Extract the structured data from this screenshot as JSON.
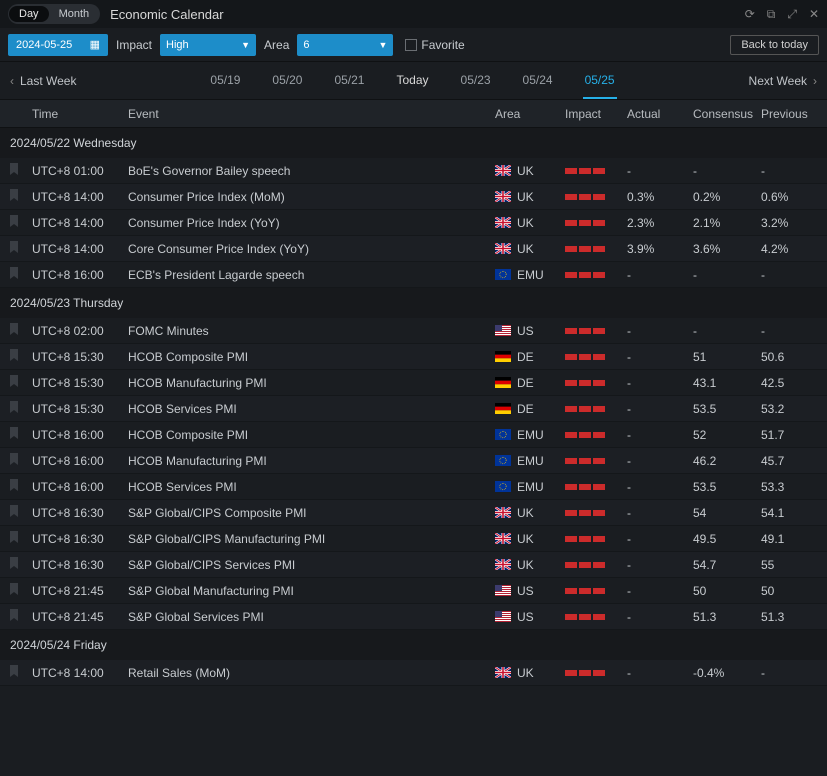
{
  "titlebar": {
    "view_day": "Day",
    "view_month": "Month",
    "title": "Economic Calendar"
  },
  "filterbar": {
    "date": "2024-05-25",
    "impact_label": "Impact",
    "impact_value": "High",
    "area_label": "Area",
    "area_value": "6",
    "favorite_label": "Favorite",
    "back_to_today": "Back to today"
  },
  "weekbar": {
    "last_week": "Last Week",
    "next_week": "Next Week",
    "dates": [
      "05/19",
      "05/20",
      "05/21",
      "Today",
      "05/23",
      "05/24",
      "05/25"
    ],
    "today_index": 3,
    "selected_index": 6
  },
  "columns": {
    "time": "Time",
    "event": "Event",
    "area": "Area",
    "impact": "Impact",
    "actual": "Actual",
    "consensus": "Consensus",
    "previous": "Previous"
  },
  "impact_bar_color": "#cc2b2b",
  "flag_svgs": {
    "UK": "<svg viewBox='0 0 16 11'><rect width='16' height='11' fill='#012169'/><path d='M0,0 L16,11 M16,0 L0,11' stroke='#fff' stroke-width='2.2'/><path d='M0,0 L16,11 M16,0 L0,11' stroke='#C8102E' stroke-width='1'/><path d='M8,0 V11 M0,5.5 H16' stroke='#fff' stroke-width='3'/><path d='M8,0 V11 M0,5.5 H16' stroke='#C8102E' stroke-width='1.6'/></svg>",
    "EMU": "<svg viewBox='0 0 16 11'><rect width='16' height='11' fill='#003399'/><circle cx='8' cy='5.5' r='3.2' fill='none' stroke='#FFCC00' stroke-width='0.9' stroke-dasharray='0.6 1.1'/></svg>",
    "US": "<svg viewBox='0 0 16 11'><rect width='16' height='11' fill='#B22234'/><rect y='1' width='16' height='1' fill='#fff'/><rect y='3' width='16' height='1' fill='#fff'/><rect y='5' width='16' height='1' fill='#fff'/><rect y='7' width='16' height='1' fill='#fff'/><rect y='9' width='16' height='1' fill='#fff'/><rect width='7' height='6' fill='#3C3B6E'/></svg>",
    "DE": "<svg viewBox='0 0 16 11'><rect width='16' height='3.67' fill='#000'/><rect y='3.67' width='16' height='3.67' fill='#DD0000'/><rect y='7.33' width='16' height='3.67' fill='#FFCE00'/></svg>"
  },
  "groups": [
    {
      "label": "2024/05/22 Wednesday",
      "rows": [
        {
          "time": "UTC+8 01:00",
          "event": "BoE's Governor Bailey speech",
          "area": "UK",
          "impact": 3,
          "actual": "-",
          "consensus": "-",
          "previous": "-"
        },
        {
          "time": "UTC+8 14:00",
          "event": "Consumer Price Index (MoM)",
          "area": "UK",
          "impact": 3,
          "actual": "0.3%",
          "consensus": "0.2%",
          "previous": "0.6%"
        },
        {
          "time": "UTC+8 14:00",
          "event": "Consumer Price Index (YoY)",
          "area": "UK",
          "impact": 3,
          "actual": "2.3%",
          "consensus": "2.1%",
          "previous": "3.2%"
        },
        {
          "time": "UTC+8 14:00",
          "event": "Core Consumer Price Index (YoY)",
          "area": "UK",
          "impact": 3,
          "actual": "3.9%",
          "consensus": "3.6%",
          "previous": "4.2%"
        },
        {
          "time": "UTC+8 16:00",
          "event": "ECB's President Lagarde speech",
          "area": "EMU",
          "impact": 3,
          "actual": "-",
          "consensus": "-",
          "previous": "-"
        }
      ]
    },
    {
      "label": "2024/05/23 Thursday",
      "rows": [
        {
          "time": "UTC+8 02:00",
          "event": "FOMC Minutes",
          "area": "US",
          "impact": 3,
          "actual": "-",
          "consensus": "-",
          "previous": "-"
        },
        {
          "time": "UTC+8 15:30",
          "event": "HCOB Composite PMI",
          "area": "DE",
          "impact": 3,
          "actual": "-",
          "consensus": "51",
          "previous": "50.6"
        },
        {
          "time": "UTC+8 15:30",
          "event": "HCOB Manufacturing PMI",
          "area": "DE",
          "impact": 3,
          "actual": "-",
          "consensus": "43.1",
          "previous": "42.5"
        },
        {
          "time": "UTC+8 15:30",
          "event": "HCOB Services PMI",
          "area": "DE",
          "impact": 3,
          "actual": "-",
          "consensus": "53.5",
          "previous": "53.2"
        },
        {
          "time": "UTC+8 16:00",
          "event": "HCOB Composite PMI",
          "area": "EMU",
          "impact": 3,
          "actual": "-",
          "consensus": "52",
          "previous": "51.7"
        },
        {
          "time": "UTC+8 16:00",
          "event": "HCOB Manufacturing PMI",
          "area": "EMU",
          "impact": 3,
          "actual": "-",
          "consensus": "46.2",
          "previous": "45.7"
        },
        {
          "time": "UTC+8 16:00",
          "event": "HCOB Services PMI",
          "area": "EMU",
          "impact": 3,
          "actual": "-",
          "consensus": "53.5",
          "previous": "53.3"
        },
        {
          "time": "UTC+8 16:30",
          "event": "S&P Global/CIPS Composite PMI",
          "area": "UK",
          "impact": 3,
          "actual": "-",
          "consensus": "54",
          "previous": "54.1"
        },
        {
          "time": "UTC+8 16:30",
          "event": "S&P Global/CIPS Manufacturing PMI",
          "area": "UK",
          "impact": 3,
          "actual": "-",
          "consensus": "49.5",
          "previous": "49.1"
        },
        {
          "time": "UTC+8 16:30",
          "event": "S&P Global/CIPS Services PMI",
          "area": "UK",
          "impact": 3,
          "actual": "-",
          "consensus": "54.7",
          "previous": "55"
        },
        {
          "time": "UTC+8 21:45",
          "event": "S&P Global Manufacturing PMI",
          "area": "US",
          "impact": 3,
          "actual": "-",
          "consensus": "50",
          "previous": "50"
        },
        {
          "time": "UTC+8 21:45",
          "event": "S&P Global Services PMI",
          "area": "US",
          "impact": 3,
          "actual": "-",
          "consensus": "51.3",
          "previous": "51.3"
        }
      ]
    },
    {
      "label": "2024/05/24 Friday",
      "rows": [
        {
          "time": "UTC+8 14:00",
          "event": "Retail Sales (MoM)",
          "area": "UK",
          "impact": 3,
          "actual": "-",
          "consensus": "-0.4%",
          "previous": "-"
        }
      ]
    }
  ]
}
